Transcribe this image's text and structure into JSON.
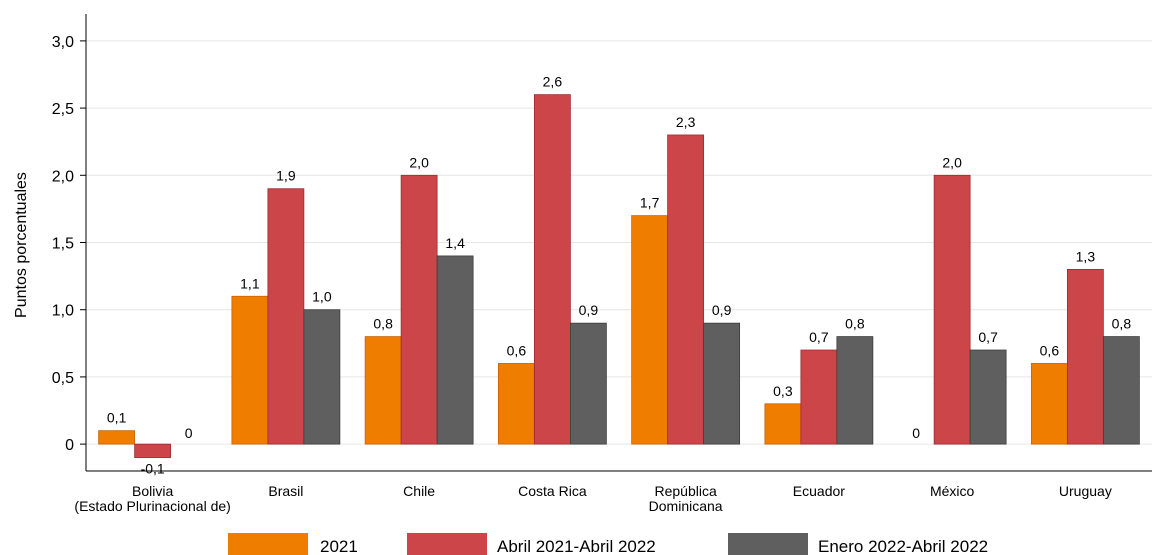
{
  "chart_data": {
    "type": "bar",
    "ylabel": "Puntos porcentuales",
    "ylim": [
      -0.2,
      3.2
    ],
    "yticks": [
      0,
      0.5,
      1.0,
      1.5,
      2.0,
      2.5,
      3.0
    ],
    "ytick_labels": [
      "0",
      "0,5",
      "1,0",
      "1,5",
      "2,0",
      "2,5",
      "3,0"
    ],
    "grid": "horizontal",
    "legend_position": "bottom",
    "categories": [
      [
        "Bolivia",
        "(Estado Plurinacional de)"
      ],
      [
        "Brasil"
      ],
      [
        "Chile"
      ],
      [
        "Costa Rica"
      ],
      [
        "República",
        "Dominicana"
      ],
      [
        "Ecuador"
      ],
      [
        "México"
      ],
      [
        "Uruguay"
      ]
    ],
    "series": [
      {
        "name": "2021",
        "color": "#ee7d00",
        "values": [
          0.1,
          1.1,
          0.8,
          0.6,
          1.7,
          0.3,
          0,
          0.6
        ],
        "labels": [
          "0,1",
          "1,1",
          "0,8",
          "0,6",
          "1,7",
          "0,3",
          "0",
          "0,6"
        ]
      },
      {
        "name": "Abril 2021-Abril 2022",
        "color": "#cc4549",
        "values": [
          -0.1,
          1.9,
          2.0,
          2.6,
          2.3,
          0.7,
          2.0,
          1.3
        ],
        "labels": [
          "-0,1",
          "1,9",
          "2,0",
          "2,6",
          "2,3",
          "0,7",
          "2,0",
          "1,3"
        ]
      },
      {
        "name": "Enero 2022-Abril 2022",
        "color": "#5f5f5f",
        "values": [
          0,
          1.0,
          1.4,
          0.9,
          0.9,
          0.8,
          0.7,
          0.8
        ],
        "labels": [
          "0",
          "1,0",
          "1,4",
          "0,9",
          "0,9",
          "0,8",
          "0,7",
          "0,8"
        ]
      }
    ]
  }
}
